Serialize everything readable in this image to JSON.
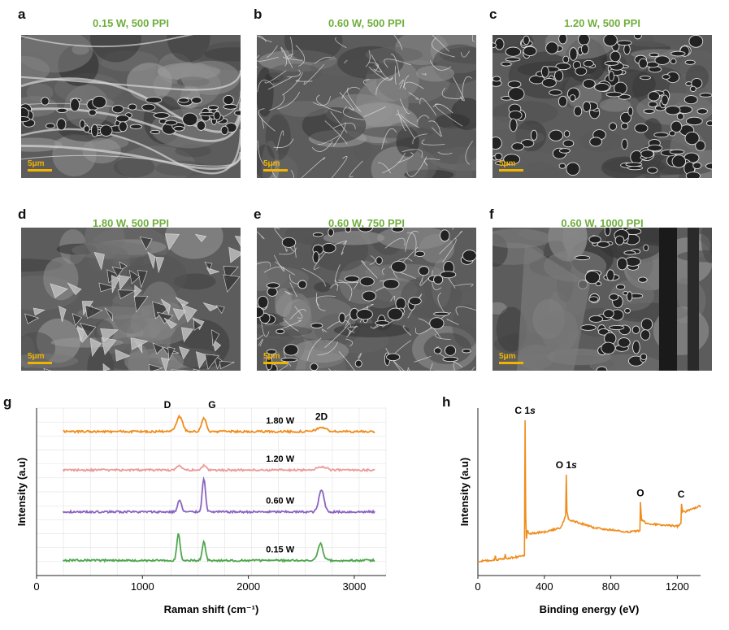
{
  "figure": {
    "panels": [
      {
        "letter": "a",
        "title": "0.15 W, 500 PPI",
        "scalebar": "5μm",
        "texture": "sheets"
      },
      {
        "letter": "b",
        "title": "0.60 W, 500 PPI",
        "scalebar": "5μm",
        "texture": "fibers"
      },
      {
        "letter": "c",
        "title": "1.20 W, 500 PPI",
        "scalebar": "5μm",
        "texture": "foam"
      },
      {
        "letter": "d",
        "title": "1.80 W, 500 PPI",
        "scalebar": "5μm",
        "texture": "flakes"
      },
      {
        "letter": "e",
        "title": "0.60 W, 750 PPI",
        "scalebar": "5μm",
        "texture": "mixed"
      },
      {
        "letter": "f",
        "title": "0.60 W, 1000 PPI",
        "scalebar": "5μm",
        "texture": "columns"
      }
    ],
    "raman_letter": "g",
    "xps_letter": "h"
  },
  "chart_data": [
    {
      "type": "line",
      "xlabel": "Raman shift (cm⁻¹)",
      "ylabel": "Intensity (a.u)",
      "xlim": [
        0,
        3300
      ],
      "xticks": [
        0,
        1000,
        2000,
        3000
      ],
      "grid": true,
      "peak_labels": [
        {
          "text": "D",
          "x": 1350
        },
        {
          "text": "G",
          "x": 1580
        },
        {
          "text": "2D",
          "x": 2690
        }
      ],
      "series": [
        {
          "name": "1.80 W",
          "color": "#f08c1c",
          "baseline": 0.86,
          "peaks": [
            {
              "x": 1350,
              "h": 0.09,
              "w": 40
            },
            {
              "x": 1580,
              "h": 0.08,
              "w": 30
            },
            {
              "x": 2690,
              "h": 0.025,
              "w": 60
            }
          ]
        },
        {
          "name": "1.20 W",
          "color": "#ec9a9a",
          "baseline": 0.63,
          "peaks": [
            {
              "x": 1350,
              "h": 0.025,
              "w": 40
            },
            {
              "x": 1580,
              "h": 0.025,
              "w": 30
            },
            {
              "x": 2690,
              "h": 0.02,
              "w": 60
            }
          ]
        },
        {
          "name": "0.60 W",
          "color": "#8a64c0",
          "baseline": 0.38,
          "peaks": [
            {
              "x": 1350,
              "h": 0.07,
              "w": 25
            },
            {
              "x": 1580,
              "h": 0.2,
              "w": 22
            },
            {
              "x": 2690,
              "h": 0.13,
              "w": 35
            }
          ]
        },
        {
          "name": "0.15 W",
          "color": "#4fa84f",
          "baseline": 0.09,
          "peaks": [
            {
              "x": 1340,
              "h": 0.16,
              "w": 22
            },
            {
              "x": 1580,
              "h": 0.11,
              "w": 22
            },
            {
              "x": 2680,
              "h": 0.1,
              "w": 35
            }
          ]
        }
      ]
    },
    {
      "type": "line",
      "xlabel": "Binding energy (eV)",
      "ylabel": "Intensity (a.u)",
      "xlim": [
        0,
        1340
      ],
      "xticks": [
        0,
        400,
        800,
        1200
      ],
      "color": "#f08c1c",
      "annotations": [
        {
          "text": "C 1",
          "italic": "s",
          "x": 284
        },
        {
          "text": "O 1",
          "italic": "s",
          "x": 532
        },
        {
          "text": "O",
          "x": 978
        },
        {
          "text": "C",
          "x": 1223
        }
      ],
      "x": [
        0,
        100,
        105,
        110,
        160,
        165,
        170,
        280,
        284,
        288,
        292,
        300,
        310,
        400,
        500,
        528,
        532,
        536,
        545,
        560,
        700,
        900,
        975,
        978,
        985,
        995,
        1010,
        1100,
        1200,
        1222,
        1225,
        1232,
        1250,
        1300,
        1340
      ],
      "y": [
        0.04,
        0.05,
        0.08,
        0.05,
        0.06,
        0.09,
        0.06,
        0.08,
        1.0,
        0.35,
        0.2,
        0.25,
        0.23,
        0.24,
        0.27,
        0.35,
        0.63,
        0.38,
        0.33,
        0.32,
        0.27,
        0.24,
        0.25,
        0.44,
        0.32,
        0.32,
        0.3,
        0.29,
        0.28,
        0.3,
        0.43,
        0.38,
        0.38,
        0.4,
        0.42
      ]
    }
  ]
}
